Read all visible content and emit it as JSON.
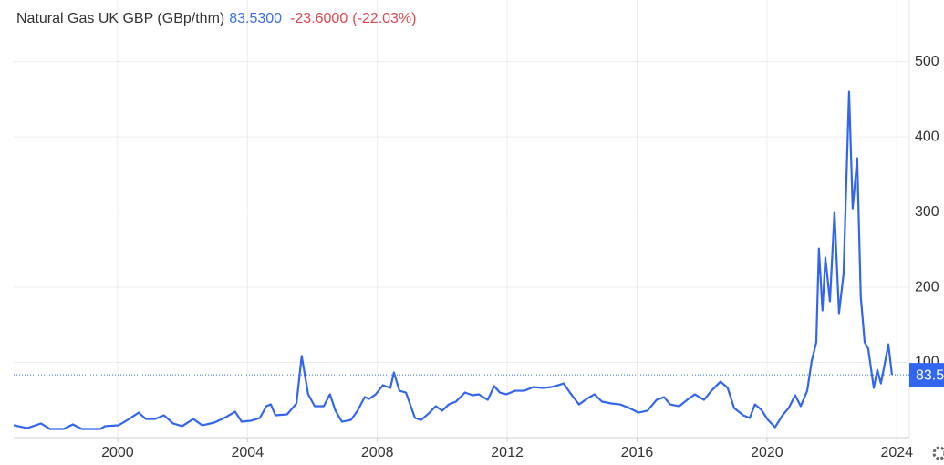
{
  "chart_data": {
    "type": "line",
    "title": "Natural Gas UK GBP (GBp/thm)",
    "price": {
      "value": 83.53,
      "label": "83.5300"
    },
    "change": {
      "value": -23.6,
      "label": "-23.6000"
    },
    "change_pct": {
      "value": -22.03,
      "label": "(-22.03%)"
    },
    "x": [
      1996.8,
      1997.22,
      1997.64,
      1997.92,
      1998.34,
      1998.62,
      1998.9,
      1999.47,
      1999.61,
      2000.03,
      2000.31,
      2000.65,
      2000.87,
      2001.15,
      2001.43,
      2001.71,
      2001.99,
      2002.33,
      2002.61,
      2002.98,
      2003.34,
      2003.62,
      2003.82,
      2004.1,
      2004.38,
      2004.58,
      2004.72,
      2004.86,
      2005.22,
      2005.51,
      2005.67,
      2005.87,
      2006.07,
      2006.35,
      2006.54,
      2006.71,
      2006.91,
      2007.19,
      2007.39,
      2007.61,
      2007.75,
      2007.95,
      2008.17,
      2008.4,
      2008.51,
      2008.68,
      2008.88,
      2009.16,
      2009.35,
      2009.58,
      2009.8,
      2010.0,
      2010.2,
      2010.42,
      2010.7,
      2010.93,
      2011.12,
      2011.4,
      2011.6,
      2011.77,
      2011.97,
      2012.25,
      2012.53,
      2012.81,
      2013.09,
      2013.37,
      2013.57,
      2013.74,
      2013.93,
      2014.21,
      2014.49,
      2014.69,
      2014.92,
      2015.2,
      2015.48,
      2015.76,
      2016.04,
      2016.32,
      2016.6,
      2016.83,
      2017.02,
      2017.3,
      2017.58,
      2017.78,
      2018.06,
      2018.29,
      2018.57,
      2018.79,
      2018.99,
      2019.27,
      2019.47,
      2019.63,
      2019.83,
      2020.03,
      2020.25,
      2020.48,
      2020.67,
      2020.87,
      2021.04,
      2021.24,
      2021.38,
      2021.52,
      2021.6,
      2021.71,
      2021.8,
      2021.94,
      2022.08,
      2022.22,
      2022.36,
      2022.53,
      2022.64,
      2022.78,
      2022.89,
      2023.01,
      2023.12,
      2023.29,
      2023.4,
      2023.51,
      2023.62,
      2023.74,
      2023.85
    ],
    "series": [
      {
        "name": "Natural Gas UK GBP",
        "color": "#3366ee",
        "values": [
          16.4,
          12.7,
          18.8,
          11.5,
          11.5,
          17.6,
          11.5,
          11.5,
          15.2,
          16.4,
          23.6,
          33.3,
          24.8,
          24.8,
          29.7,
          18.8,
          15.2,
          24.8,
          16.4,
          20.0,
          27.3,
          34.5,
          21.2,
          22.4,
          26.1,
          41.8,
          44.2,
          29.7,
          30.9,
          45.5,
          108.5,
          57.6,
          41.8,
          41.8,
          57.6,
          35.8,
          21.2,
          23.6,
          35.8,
          53.9,
          51.5,
          57.6,
          69.7,
          66.1,
          86.7,
          62.4,
          60.0,
          26.1,
          23.6,
          32.1,
          41.8,
          35.8,
          44.2,
          47.9,
          60.0,
          56.4,
          57.6,
          50.3,
          68.5,
          60.0,
          57.6,
          62.4,
          62.4,
          67.3,
          66.1,
          67.3,
          69.7,
          72.1,
          60.0,
          44.2,
          52.7,
          57.6,
          47.9,
          45.5,
          44.2,
          39.4,
          33.3,
          35.8,
          50.3,
          53.9,
          44.2,
          41.8,
          51.5,
          57.6,
          50.3,
          62.4,
          74.5,
          66.1,
          39.4,
          29.7,
          26.1,
          44.2,
          37.0,
          23.6,
          13.9,
          29.7,
          39.4,
          56.4,
          41.8,
          62.4,
          102.4,
          126.7,
          251.5,
          169.1,
          239.4,
          181.2,
          300.0,
          165.5,
          217.6,
          460.0,
          304.8,
          371.5,
          187.3,
          126.7,
          118.2,
          66.1,
          90.3,
          72.1,
          96.4,
          124.2,
          83.53
        ]
      }
    ],
    "xlim": [
      1996.8,
      2024.47
    ],
    "xticks": [
      2000,
      2004,
      2008,
      2012,
      2016,
      2020,
      2024
    ],
    "ylim": [
      0,
      582
    ],
    "yticks": [
      100,
      200,
      300,
      400,
      500
    ],
    "grid": true
  }
}
